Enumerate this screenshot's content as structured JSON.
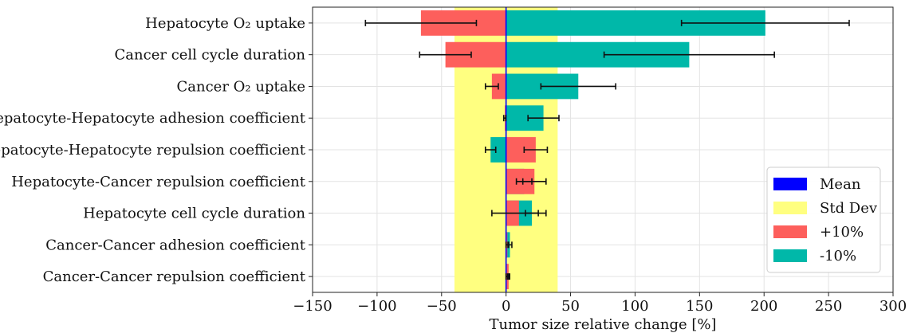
{
  "chart_data": {
    "type": "bar",
    "orientation": "horizontal",
    "categories": [
      "Hepatocyte O₂ uptake",
      "Cancer cell cycle duration",
      "Cancer O₂ uptake",
      "Hepatocyte-Hepatocyte adhesion coefficient",
      "Hepatocyte-Hepatocyte repulsion coefficient",
      "Hepatocyte-Cancer repulsion coefficient",
      "Hepatocyte cell cycle duration",
      "Cancer-Cancer adhesion coefficient",
      "Cancer-Cancer repulsion coefficient"
    ],
    "series": [
      {
        "name": "-10%",
        "color": "#00b8a9",
        "values": [
          201,
          142,
          56,
          29,
          -12,
          14,
          20,
          3,
          1
        ],
        "errors": [
          65,
          66,
          29,
          12,
          4,
          6,
          5,
          1.5,
          1
        ]
      },
      {
        "name": "+10%",
        "color": "#fd5f5c",
        "values": [
          -66,
          -47,
          -11,
          -1,
          23,
          22,
          10,
          1,
          2
        ],
        "errors": [
          43,
          20,
          5,
          0.8,
          9,
          9,
          21,
          1,
          0.8
        ]
      }
    ],
    "mean": {
      "name": "Mean",
      "value": 0,
      "color": "#0000ff"
    },
    "std_band": {
      "name": "Std Dev",
      "range": [
        -40,
        40
      ],
      "color": "#ffff80"
    },
    "xlabel": "Tumor size relative change [%]",
    "xlim": [
      -150,
      300
    ],
    "xticks": [
      -150,
      -100,
      -50,
      0,
      50,
      100,
      150,
      200,
      250,
      300
    ],
    "xtick_labels": [
      "−150",
      "−100",
      "−50",
      "0",
      "50",
      "100",
      "150",
      "200",
      "250",
      "300"
    ],
    "grid": true,
    "legend_position": "lower-right",
    "legend_entries": [
      "Mean",
      "Std Dev",
      "+10%",
      "-10%"
    ]
  }
}
